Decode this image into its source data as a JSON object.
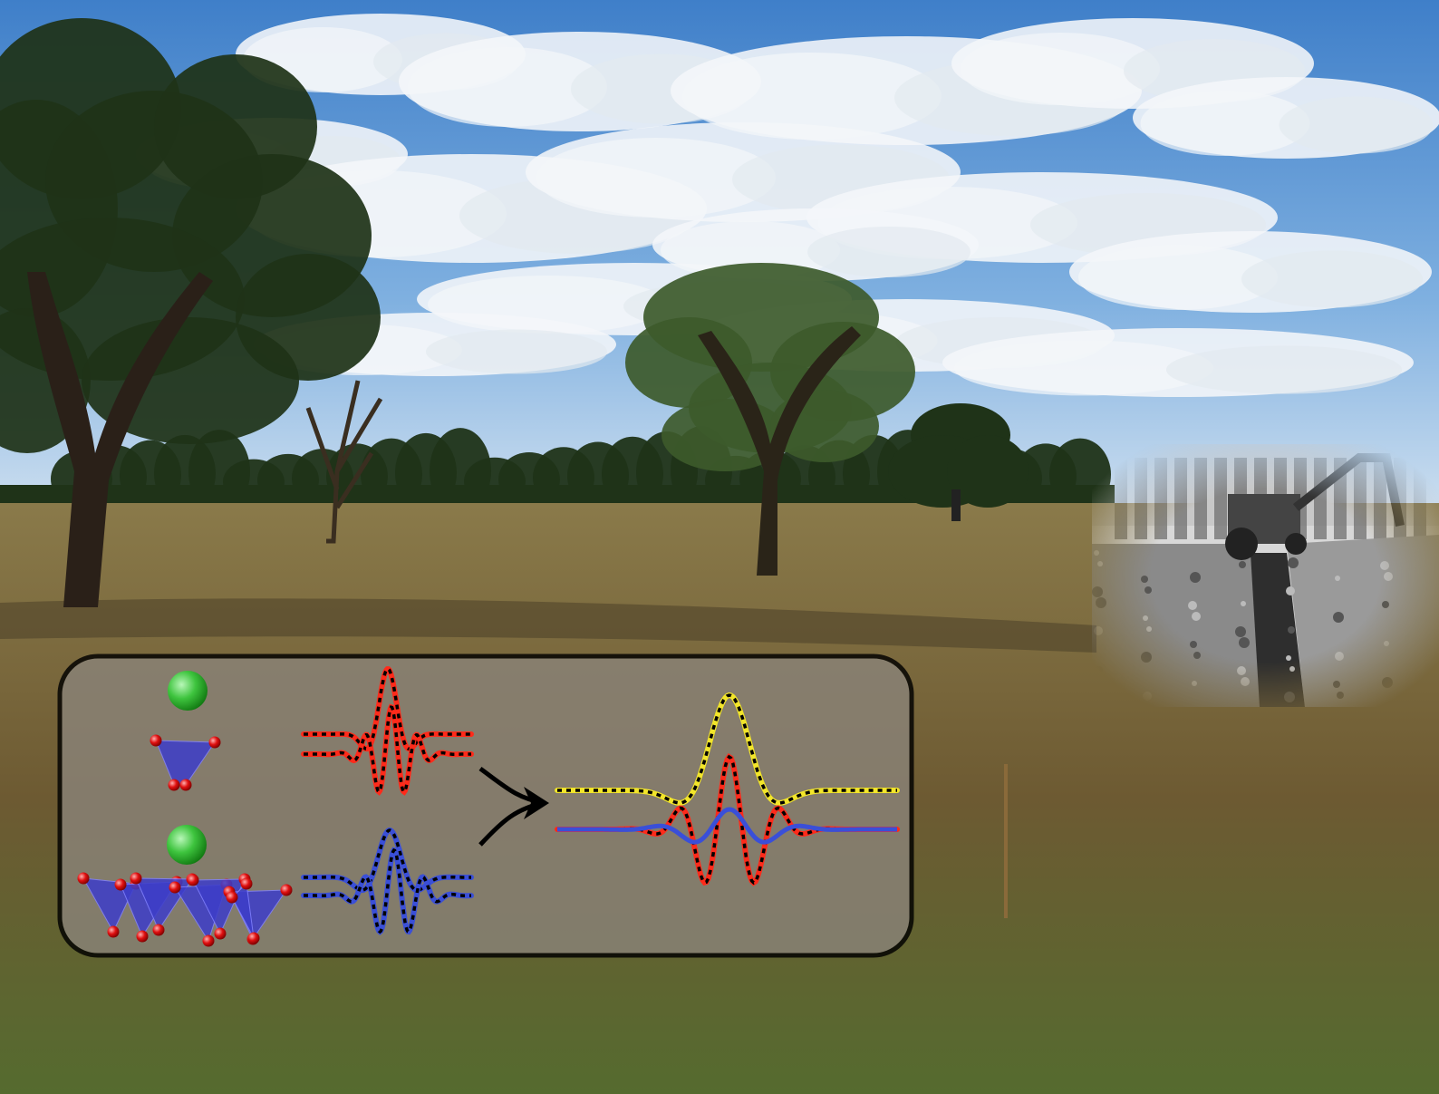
{
  "scene": {
    "kind": "open grassland field with eucalyptus trees under a cloudy blue sky",
    "colors": {
      "sky_top": "#3f7fc9",
      "sky_mid": "#7fb0e0",
      "sky_horizon": "#d9e6f2",
      "cloud": "#f4f6f9",
      "tree_foliage": "#1f3318",
      "tree_foliage_light": "#3d5a2b",
      "grass_far": "#8a7a4a",
      "grass_near": "#6d5a32",
      "grass_green": "#556b2f",
      "shadow": "#4a3f28"
    }
  },
  "inset_photo": {
    "kind": "black-and-white photo of a tractor-mounted trench digger and an excavated trench",
    "colors": {
      "light": "#d8d8d8",
      "mid": "#8a8a8a",
      "dark": "#2e2e2e"
    }
  },
  "diagram": {
    "kind": "spectra schematic",
    "colors": {
      "panel": "#8a8378",
      "border": "#000000",
      "sphere": "#3ec43e",
      "oxygen": "#e01010",
      "tetrahedron": "#3d3dc9",
      "red_trace": "#ff2a1a",
      "blue_trace": "#3a4fd8",
      "yellow_trace": "#f2e52a",
      "dashed_fit": "#000000"
    }
  }
}
